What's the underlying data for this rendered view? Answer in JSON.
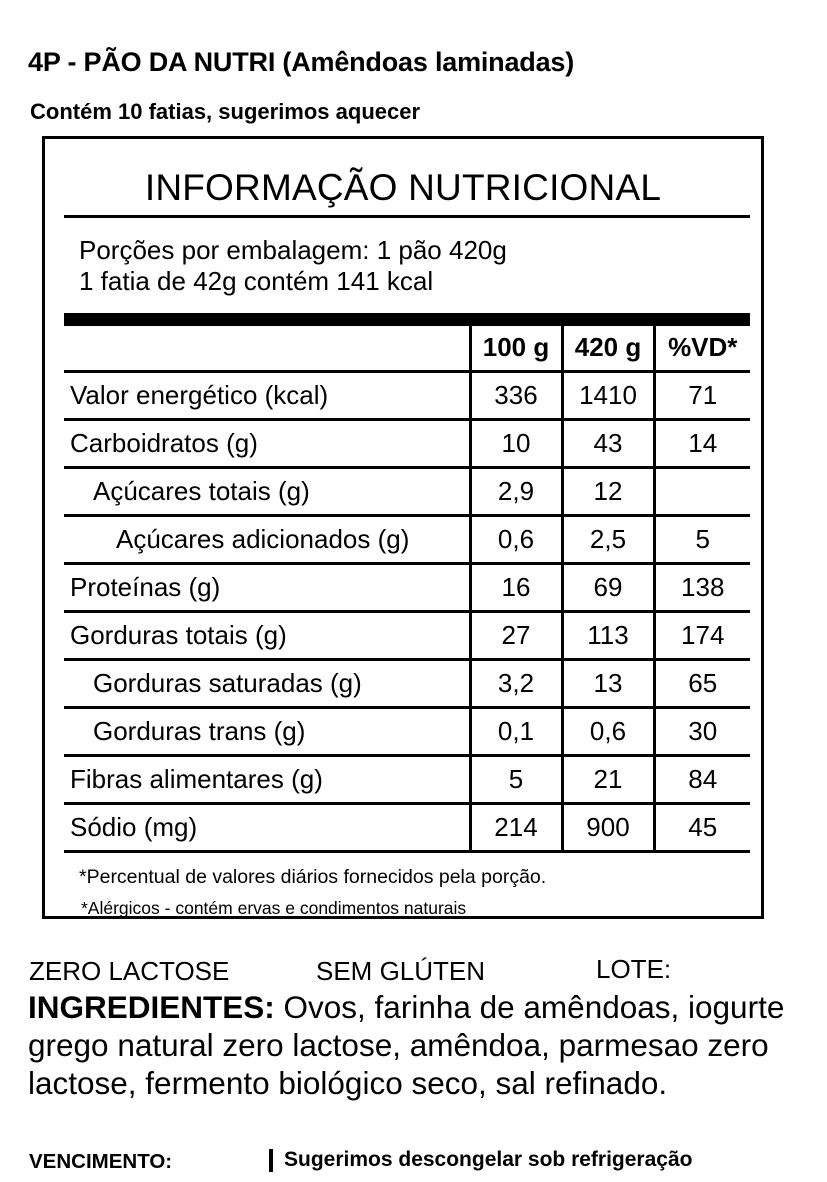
{
  "product": {
    "title": "4P - PÃO DA NUTRI (Amêndoas laminadas)",
    "slices_note": "Contém 10 fatias, sugerimos aquecer"
  },
  "nutrition": {
    "heading": "INFORMAÇÃO NUTRICIONAL",
    "serving_line_1": "Porções por embalagem: 1 pão 420g",
    "serving_line_2": "1 fatia de 42g contém 141 kcal",
    "columns": [
      "",
      "100 g",
      "420 g",
      "%VD*"
    ],
    "rows": [
      {
        "label": "Valor energético (kcal)",
        "indent": 0,
        "per_100g": "336",
        "per_420g": "1410",
        "vd": "71"
      },
      {
        "label": "Carboidratos (g)",
        "indent": 0,
        "per_100g": "10",
        "per_420g": "43",
        "vd": "14"
      },
      {
        "label": "Açúcares totais (g)",
        "indent": 1,
        "per_100g": "2,9",
        "per_420g": "12",
        "vd": ""
      },
      {
        "label": "Açúcares adicionados (g)",
        "indent": 2,
        "per_100g": "0,6",
        "per_420g": "2,5",
        "vd": "5"
      },
      {
        "label": "Proteínas (g)",
        "indent": 0,
        "per_100g": "16",
        "per_420g": "69",
        "vd": "138"
      },
      {
        "label": "Gorduras totais (g)",
        "indent": 0,
        "per_100g": "27",
        "per_420g": "113",
        "vd": "174"
      },
      {
        "label": "Gorduras saturadas (g)",
        "indent": 1,
        "per_100g": "3,2",
        "per_420g": "13",
        "vd": "65"
      },
      {
        "label": "Gorduras trans (g)",
        "indent": 1,
        "per_100g": "0,1",
        "per_420g": "0,6",
        "vd": "30"
      },
      {
        "label": "Fibras alimentares (g)",
        "indent": 0,
        "per_100g": "5",
        "per_420g": "21",
        "vd": "84"
      },
      {
        "label": "Sódio (mg)",
        "indent": 0,
        "per_100g": "214",
        "per_420g": "900",
        "vd": "45"
      }
    ],
    "footnote_1": "*Percentual de valores diários fornecidos pela porção.",
    "footnote_2": "*Alérgicos - contém ervas e condimentos naturais"
  },
  "flags": {
    "lactose": "ZERO LACTOSE",
    "gluten": "SEM GLÚTEN",
    "lote": "LOTE:"
  },
  "ingredients": {
    "label": "INGREDIENTES:",
    "text": " Ovos, farinha de amêndoas, iogurte grego natural zero lactose, amêndoa, parmesao zero lactose, fermento biológico seco, sal refinado."
  },
  "footer": {
    "vencimento": "VENCIMENTO:",
    "storage_tip": "Sugerimos descongelar sob refrigeração"
  }
}
